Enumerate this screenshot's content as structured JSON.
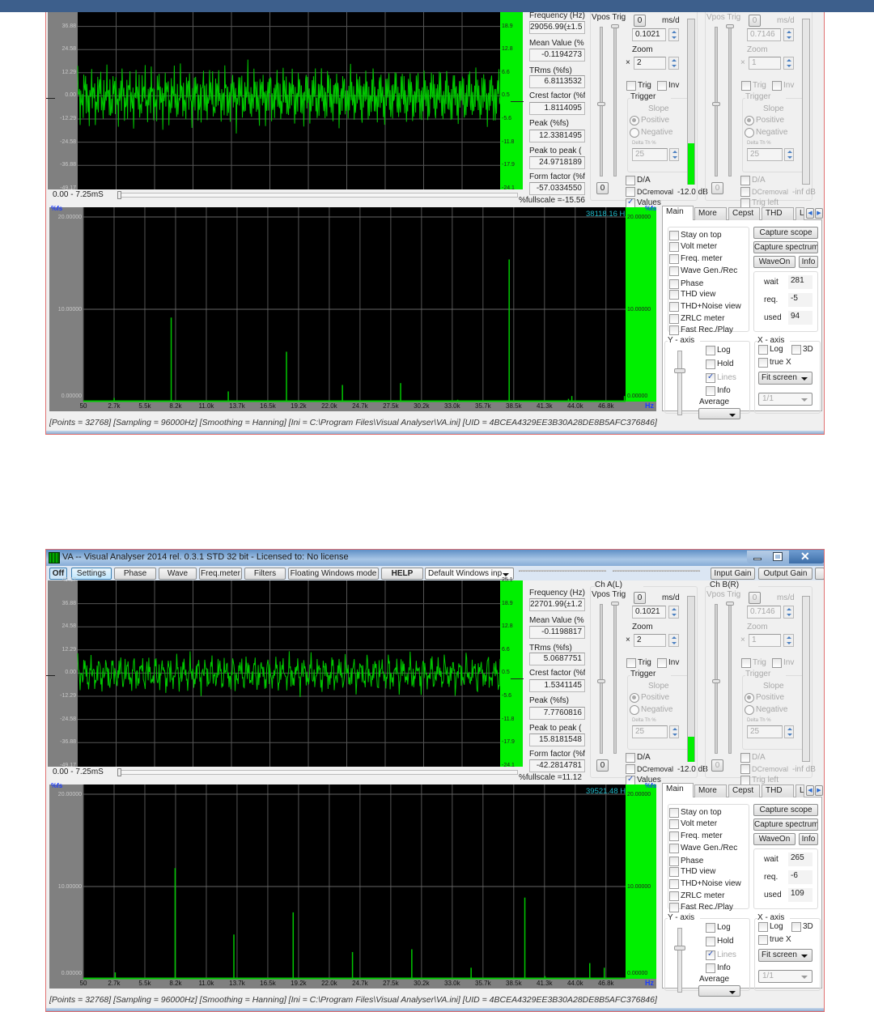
{
  "labels": {
    "ch_a": "Ch A(L)",
    "ch_b": "Ch B(R)",
    "vpos_trig": "Vpos Trig",
    "ms_d": "ms/d",
    "zoom": "Zoom",
    "times": "×",
    "trig": "Trig",
    "inv": "Inv",
    "trigger": "Trigger",
    "slope": "Slope",
    "positive": "Positive",
    "negative": "Negative",
    "delta_th": "Delta Th %",
    "zero": "0",
    "da": "D/A",
    "dcremoval": "DCremoval",
    "values": "Values",
    "trig_left": "Trig left",
    "tabs": [
      "Main",
      "More",
      "Cepst",
      "THD",
      "L"
    ],
    "checkboxes": [
      "Stay on top",
      "Volt meter",
      "Freq. meter",
      "Wave Gen./Rec",
      "Phase",
      "THD view",
      "THD+Noise view",
      "ZRLC meter",
      "Fast Rec./Play"
    ],
    "capture_scope": "Capture scope",
    "capture_spectrum": "Capture spectrum",
    "wave_on": "WaveOn",
    "info_btn": "Info",
    "wait": "wait",
    "req": "req.",
    "used": "used",
    "y_axis": "Y - axis",
    "x_axis": "X - axis",
    "log": "Log",
    "hold": "Hold",
    "lines": "Lines",
    "info": "Info",
    "average": "Average",
    "three_d": "3D",
    "true_x": "true X",
    "fit_screen": "Fit screen",
    "ratio": "1/1",
    "measure_labels": [
      "Frequency (Hz)",
      "Mean Value (%",
      "TRms (%fs)",
      "Crest factor (%f",
      "Peak (%fs)",
      "Peak to peak (",
      "Form factor (%f"
    ],
    "scope_y_ticks": [
      "49.17",
      "36.88",
      "24.58",
      "12.29",
      "0.00",
      "-12.29",
      "-24.58",
      "-36.88",
      "-49.17"
    ],
    "level_ticks": [
      "25.1",
      "18.9",
      "12.8",
      "6.6",
      "0.5",
      "-5.6",
      "-11.8",
      "-17.9",
      "-24.1"
    ],
    "time_range": "0.00 - 7.25mS",
    "spec_y_ticks": [
      "20.00000",
      "10.00000",
      "0.00000"
    ],
    "spec_unit": "%fs",
    "hz": "Hz",
    "spec_x_ticks": [
      "50",
      "2.7k",
      "5.5k",
      "8.2k",
      "11.0k",
      "13.7k",
      "16.5k",
      "19.2k",
      "22.0k",
      "24.7k",
      "27.5k",
      "30.2k",
      "33.0k",
      "35.7k",
      "38.5k",
      "41.3k",
      "44.0k",
      "46.8k"
    ],
    "status": "[Points = 32768]  [Sampling = 96000Hz]  [Smoothing = Hanning]  [Ini = C:\\Program Files\\Visual Analyser\\VA.ini]  [UID = 4BCEA4329EE3B30A28DE8B5AFC376846]"
  },
  "panels": [
    {
      "header_visible": false,
      "measurements": [
        "29056.99(±1.5",
        "-0.1194273",
        "6.8113532",
        "1.8114095",
        "12.3381495",
        "24.9718189",
        "-57.0334550"
      ],
      "fullscale": "%fullscale =-15.56",
      "ch_a": {
        "ms_d": "0.1021",
        "zoom": "2",
        "delta": "25",
        "level_db": "-12.0 dB",
        "level": 0.25
      },
      "ch_b": {
        "ms_d": "0.7146",
        "zoom": "1",
        "delta": "25",
        "level_db": "-inf dB"
      },
      "spectrum": {
        "peak_readout": "38118.16 H",
        "peaks": [
          [
            2800,
            0.4
          ],
          [
            7900,
            9.1
          ],
          [
            13000,
            1.1
          ],
          [
            18200,
            5.4
          ],
          [
            23200,
            1.8
          ],
          [
            28400,
            2.0
          ],
          [
            33500,
            0.2
          ],
          [
            38100,
            15.4
          ],
          [
            43400,
            0.3
          ],
          [
            43700,
            0.6
          ],
          [
            48400,
            0.6
          ]
        ]
      },
      "main_tab": {
        "wait": "281",
        "req": "-5",
        "used": "94"
      }
    },
    {
      "header_visible": true,
      "title": "VA -- Visual Analyser 2014 rel. 0.3.1 STD 32 bit - Licensed to: No license",
      "toolbar": [
        "Off",
        "Settings",
        "Phase",
        "Wave",
        "Freq.meter",
        "Filters",
        "Floating Windows mode",
        "HELP"
      ],
      "dropdown": "Default Windows inp",
      "input_gain": "Input Gain",
      "output_gain": "Output Gain",
      "measurements": [
        "22701.99(±1.2",
        "-0.1198817",
        "5.0687751",
        "1.5341145",
        "7.7760816",
        "15.8181548",
        "-42.2814781"
      ],
      "fullscale": "%fullscale =11.12",
      "ch_a": {
        "ms_d": "0.1021",
        "zoom": "2",
        "delta": "25",
        "level_db": "-12.0 dB",
        "level": 0.15
      },
      "ch_b": {
        "ms_d": "0.7146",
        "zoom": "1",
        "delta": "25",
        "level_db": "-inf dB"
      },
      "spectrum": {
        "peak_readout": "39521.48 H",
        "peaks": [
          [
            2900,
            0.7
          ],
          [
            8250,
            12.0
          ],
          [
            13500,
            4.8
          ],
          [
            18800,
            7.2
          ],
          [
            24100,
            2.9
          ],
          [
            29400,
            3.2
          ],
          [
            34700,
            1.2
          ],
          [
            39500,
            8.8
          ],
          [
            41300,
            0.3
          ],
          [
            45300,
            1.7
          ],
          [
            46600,
            1.2
          ]
        ]
      },
      "main_tab": {
        "wait": "265",
        "req": "-6",
        "used": "109"
      }
    }
  ],
  "colors": {
    "trace": "#00c800",
    "level_bar": "#00f000",
    "peak_readout": "#1fb8c8",
    "axis_unit": "#1a3cff"
  }
}
